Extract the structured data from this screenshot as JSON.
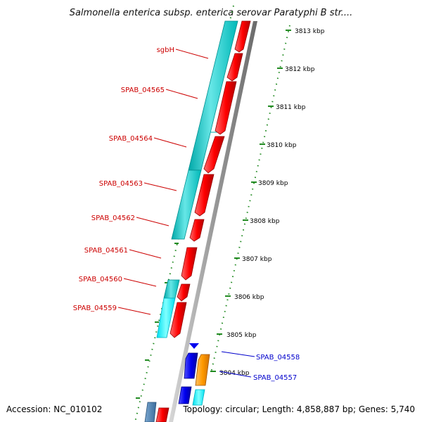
{
  "title": "Salmonella enterica subsp. enterica serovar Paratyphi B str....",
  "accession": "Accession: NC_010102",
  "topology": "Topology: circular; Length: 4,858,887 bp; Genes: 5,740",
  "ruler_ticks": [
    {
      "kbp": 3813,
      "label": "3813 kbp"
    },
    {
      "kbp": 3812,
      "label": "3812 kbp"
    },
    {
      "kbp": 3811,
      "label": "3811 kbp"
    },
    {
      "kbp": 3810,
      "label": "3810 kbp"
    },
    {
      "kbp": 3809,
      "label": "3809 kbp"
    },
    {
      "kbp": 3808,
      "label": "3808 kbp"
    },
    {
      "kbp": 3807,
      "label": "3807 kbp"
    },
    {
      "kbp": 3806,
      "label": "3806 kbp"
    },
    {
      "kbp": 3805,
      "label": "3805 kbp"
    },
    {
      "kbp": 3804,
      "label": "3804 kbp"
    }
  ],
  "gene_labels": [
    {
      "name": "sgbH",
      "strand": "reverse"
    },
    {
      "name": "SPAB_04565",
      "strand": "reverse"
    },
    {
      "name": "SPAB_04564",
      "strand": "reverse"
    },
    {
      "name": "SPAB_04563",
      "strand": "reverse"
    },
    {
      "name": "SPAB_04562",
      "strand": "reverse"
    },
    {
      "name": "SPAB_04561",
      "strand": "reverse"
    },
    {
      "name": "SPAB_04560",
      "strand": "reverse"
    },
    {
      "name": "SPAB_04559",
      "strand": "reverse"
    },
    {
      "name": "SPAB_04558",
      "strand": "forward"
    },
    {
      "name": "SPAB_04557",
      "strand": "forward"
    }
  ],
  "colors": {
    "reverse_gene": "#ff0000",
    "reverse_label": "#cc0000",
    "cds_track": "#00cccc",
    "forward_gene": "#0000ee",
    "forward_label": "#0000cc",
    "orange_gene": "#ff9900",
    "slate_gene": "#4a7fb0",
    "backbone": "#999999",
    "ruler": "#228b22"
  }
}
